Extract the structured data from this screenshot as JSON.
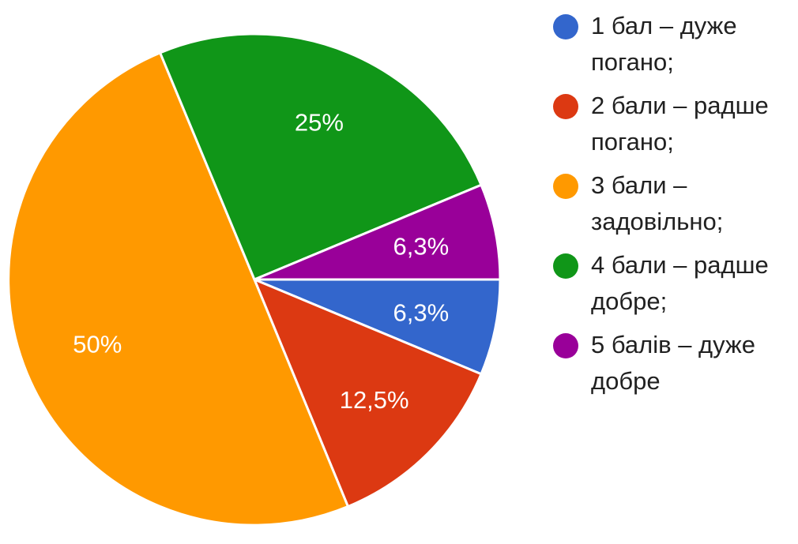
{
  "chart_data": {
    "type": "pie",
    "title": "",
    "categories": [
      "1 бал – дуже погано;",
      "2 бали – радше погано;",
      "3 бали – задовільно;",
      "4 бали – радше добре;",
      "5 балів – дуже добре"
    ],
    "values": [
      6.3,
      12.5,
      50,
      25,
      6.3
    ],
    "data_labels": [
      "6,3%",
      "12,5%",
      "50%",
      "25%",
      "6,3%"
    ],
    "colors": [
      "#3366cc",
      "#dc3912",
      "#ff9900",
      "#109618",
      "#990099"
    ],
    "legend": {
      "placement": "right",
      "items": [
        {
          "lines": [
            "1 бал – дуже",
            "погано;"
          ],
          "color": "#3366cc"
        },
        {
          "lines": [
            "2 бали – радше",
            "погано;"
          ],
          "color": "#dc3912"
        },
        {
          "lines": [
            "3 бали –",
            "задовільно;"
          ],
          "color": "#ff9900"
        },
        {
          "lines": [
            "4 бали – радше",
            "добре;"
          ],
          "color": "#109618"
        },
        {
          "lines": [
            "5 балів – дуже",
            "добре"
          ],
          "color": "#990099"
        }
      ]
    }
  }
}
